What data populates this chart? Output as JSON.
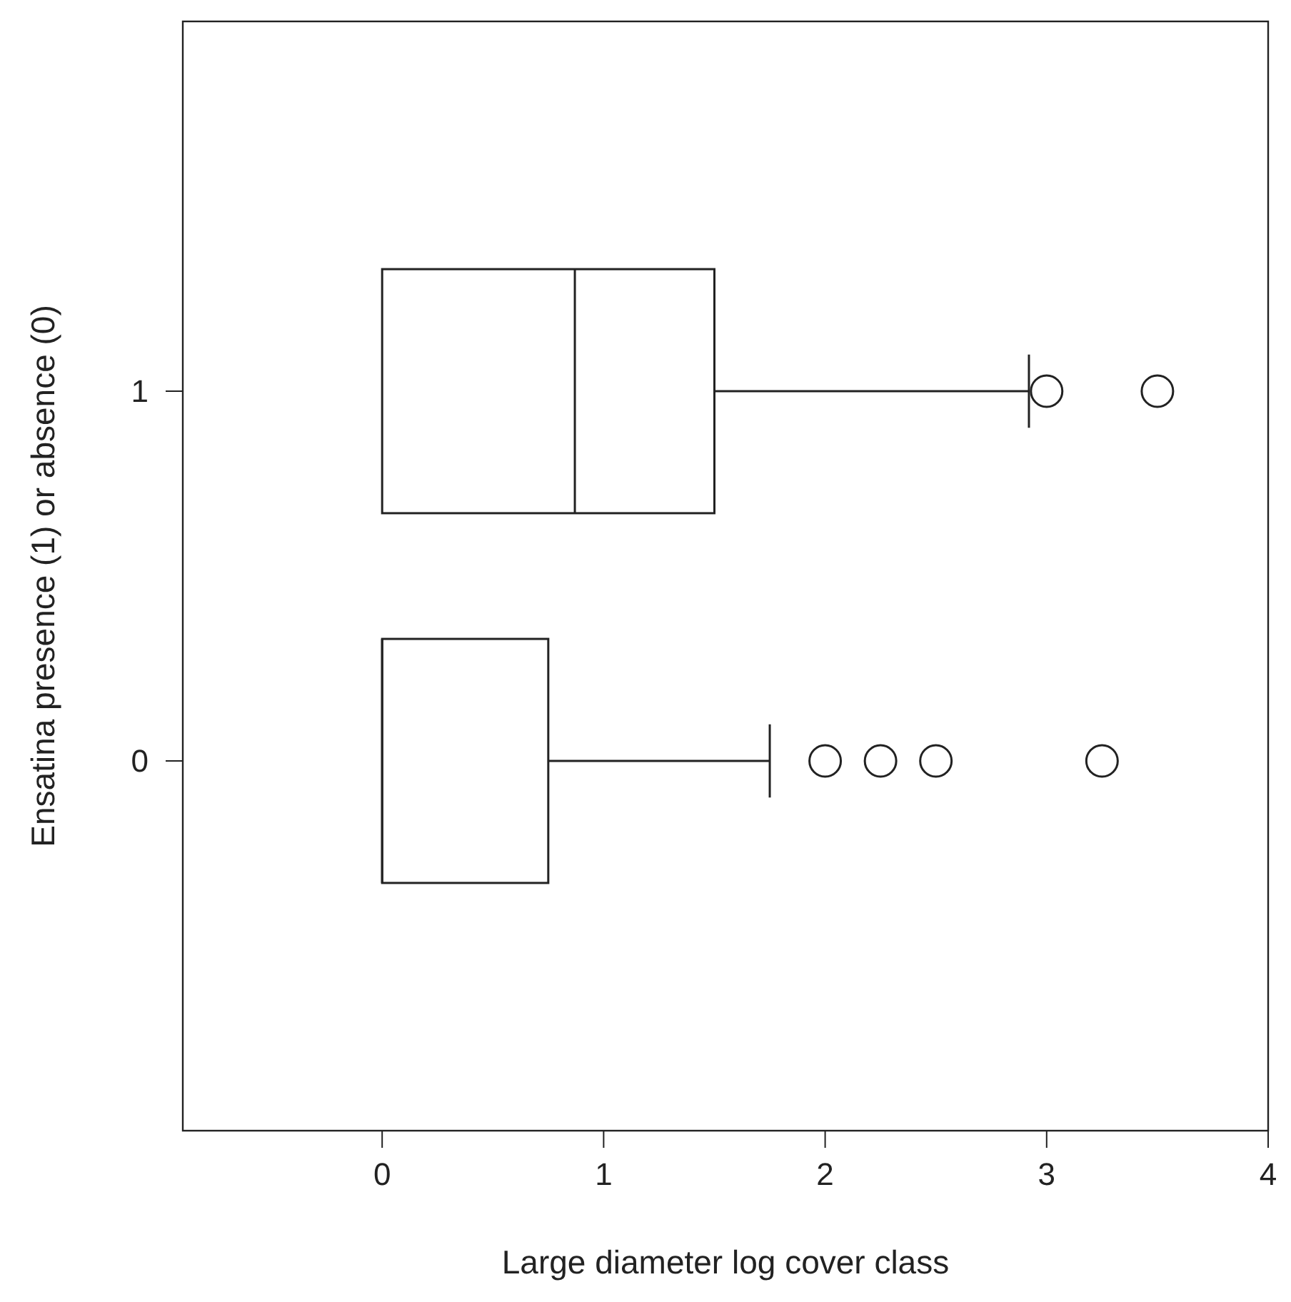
{
  "chart_data": {
    "type": "box",
    "orientation": "horizontal",
    "xlabel": "Large diameter log cover class",
    "ylabel": "Ensatina presence (1) or absence (0)",
    "categories": [
      "1",
      "0"
    ],
    "boxes": [
      {
        "low": 0,
        "q1": 0,
        "median": 0.87,
        "q3": 1.5,
        "high": 2.92,
        "outliers": [
          3.0,
          3.5
        ]
      },
      {
        "low": 0,
        "q1": 0,
        "median": 0,
        "q3": 0.75,
        "high": 1.75,
        "outliers": [
          2.0,
          2.25,
          2.5,
          3.25
        ]
      }
    ],
    "xlim": [
      -0.9,
      4
    ],
    "xticks": [
      0,
      1,
      2,
      3,
      4
    ]
  }
}
